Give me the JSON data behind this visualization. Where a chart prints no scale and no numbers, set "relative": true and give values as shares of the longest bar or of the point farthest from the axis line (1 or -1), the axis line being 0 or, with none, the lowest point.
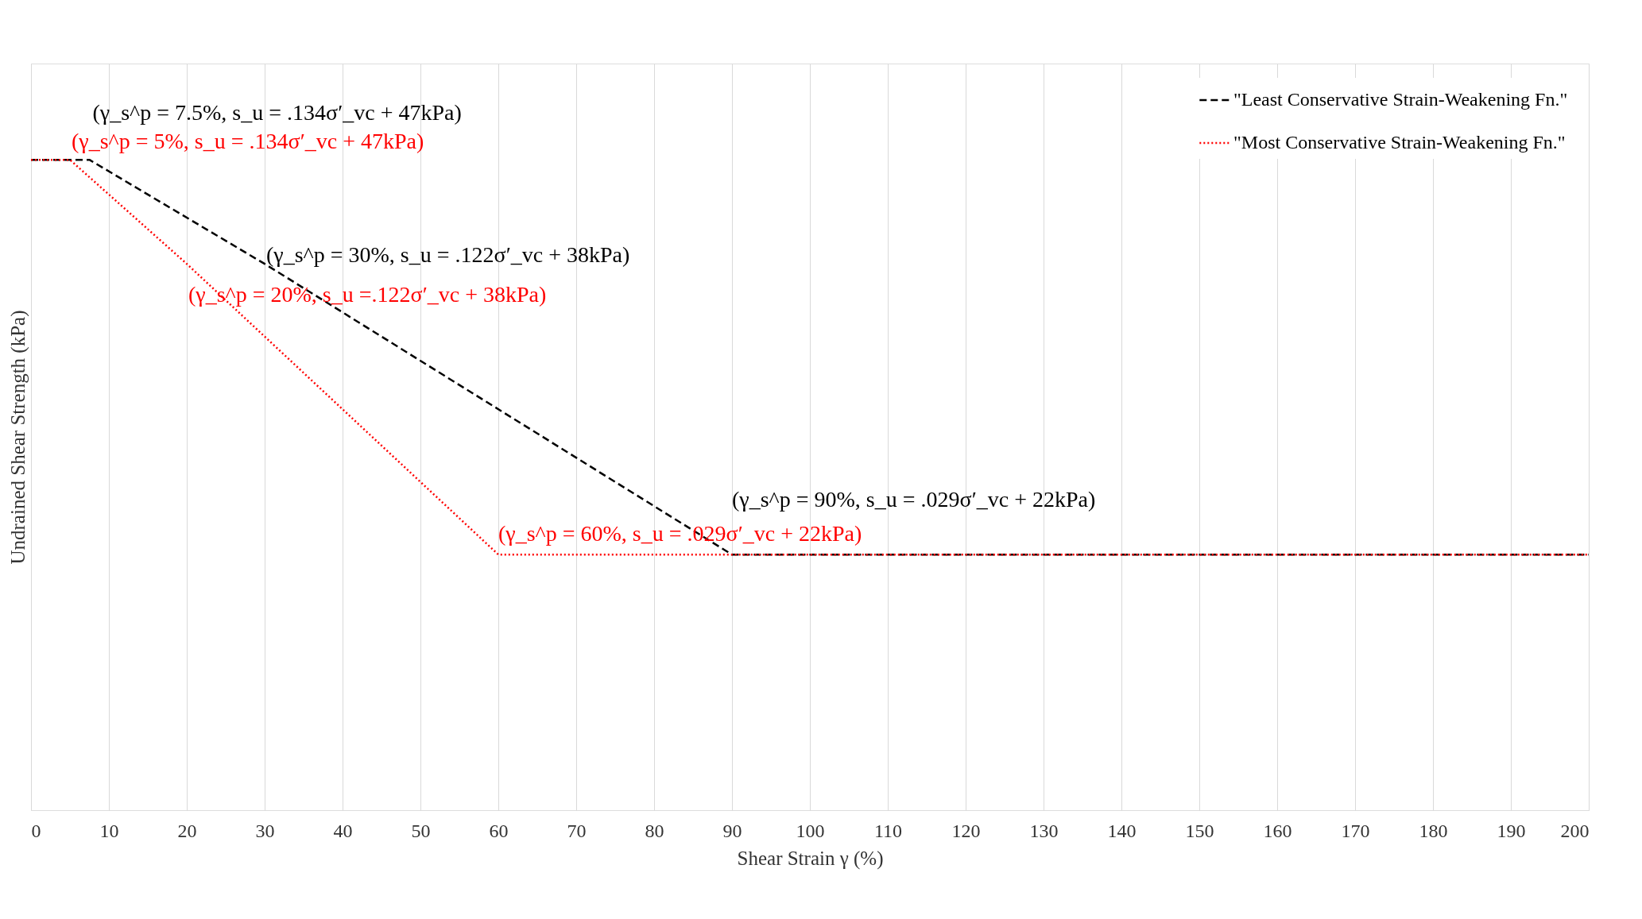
{
  "chart_data": {
    "type": "line",
    "relative": true,
    "xlabel": "Shear Strain γ (%)",
    "ylabel": "Undrained Shear Strength (kPa)",
    "xlim": [
      0,
      200
    ],
    "xticks": [
      0,
      10,
      20,
      30,
      40,
      50,
      60,
      70,
      80,
      90,
      100,
      110,
      120,
      130,
      140,
      150,
      160,
      170,
      180,
      190,
      200
    ],
    "grid": "x",
    "legend": "top right",
    "marker": "none",
    "series": [
      {
        "name": "\"Least Conservative Strain-Weakening Fn.\"",
        "color": "#000000",
        "line_style": "dashed",
        "x": [
          0,
          7.5,
          30,
          90,
          200
        ],
        "values": [
          1,
          1,
          0.84,
          0.393,
          0.393
        ]
      },
      {
        "name": "\"Most Conservative Strain-Weakening Fn.\"",
        "color": "#ff0000",
        "line_style": "dotted",
        "x": [
          0,
          5,
          20,
          60,
          200
        ],
        "values": [
          1,
          1,
          0.84,
          0.393,
          0.393
        ]
      }
    ],
    "annotations": [
      {
        "text": "(γ_s^p = 7.5%, s_u = .134σ′_vc + 47kPa)",
        "x": 7.5,
        "y": 1
      },
      {
        "text": "(γ_s^p = 5%, s_u = .134σ′_vc + 47kPa)",
        "x": 5,
        "y": 1
      },
      {
        "text": "(γ_s^p = 30%, s_u = .122σ′_vc + 38kPa)",
        "x": 30,
        "y": 0.84
      },
      {
        "text": "(γ_s^p = 20%, s_u =.122σ′_vc + 38kPa)",
        "x": 20,
        "y": 0.84
      },
      {
        "text": "(γ_s^p = 90%, s_u = .029σ′_vc + 22kPa)",
        "x": 90,
        "y": 0.393
      },
      {
        "text": "(γ_s^p = 60%, s_u = .029σ′_vc + 22kPa)",
        "x": 60,
        "y": 0.393
      }
    ]
  }
}
